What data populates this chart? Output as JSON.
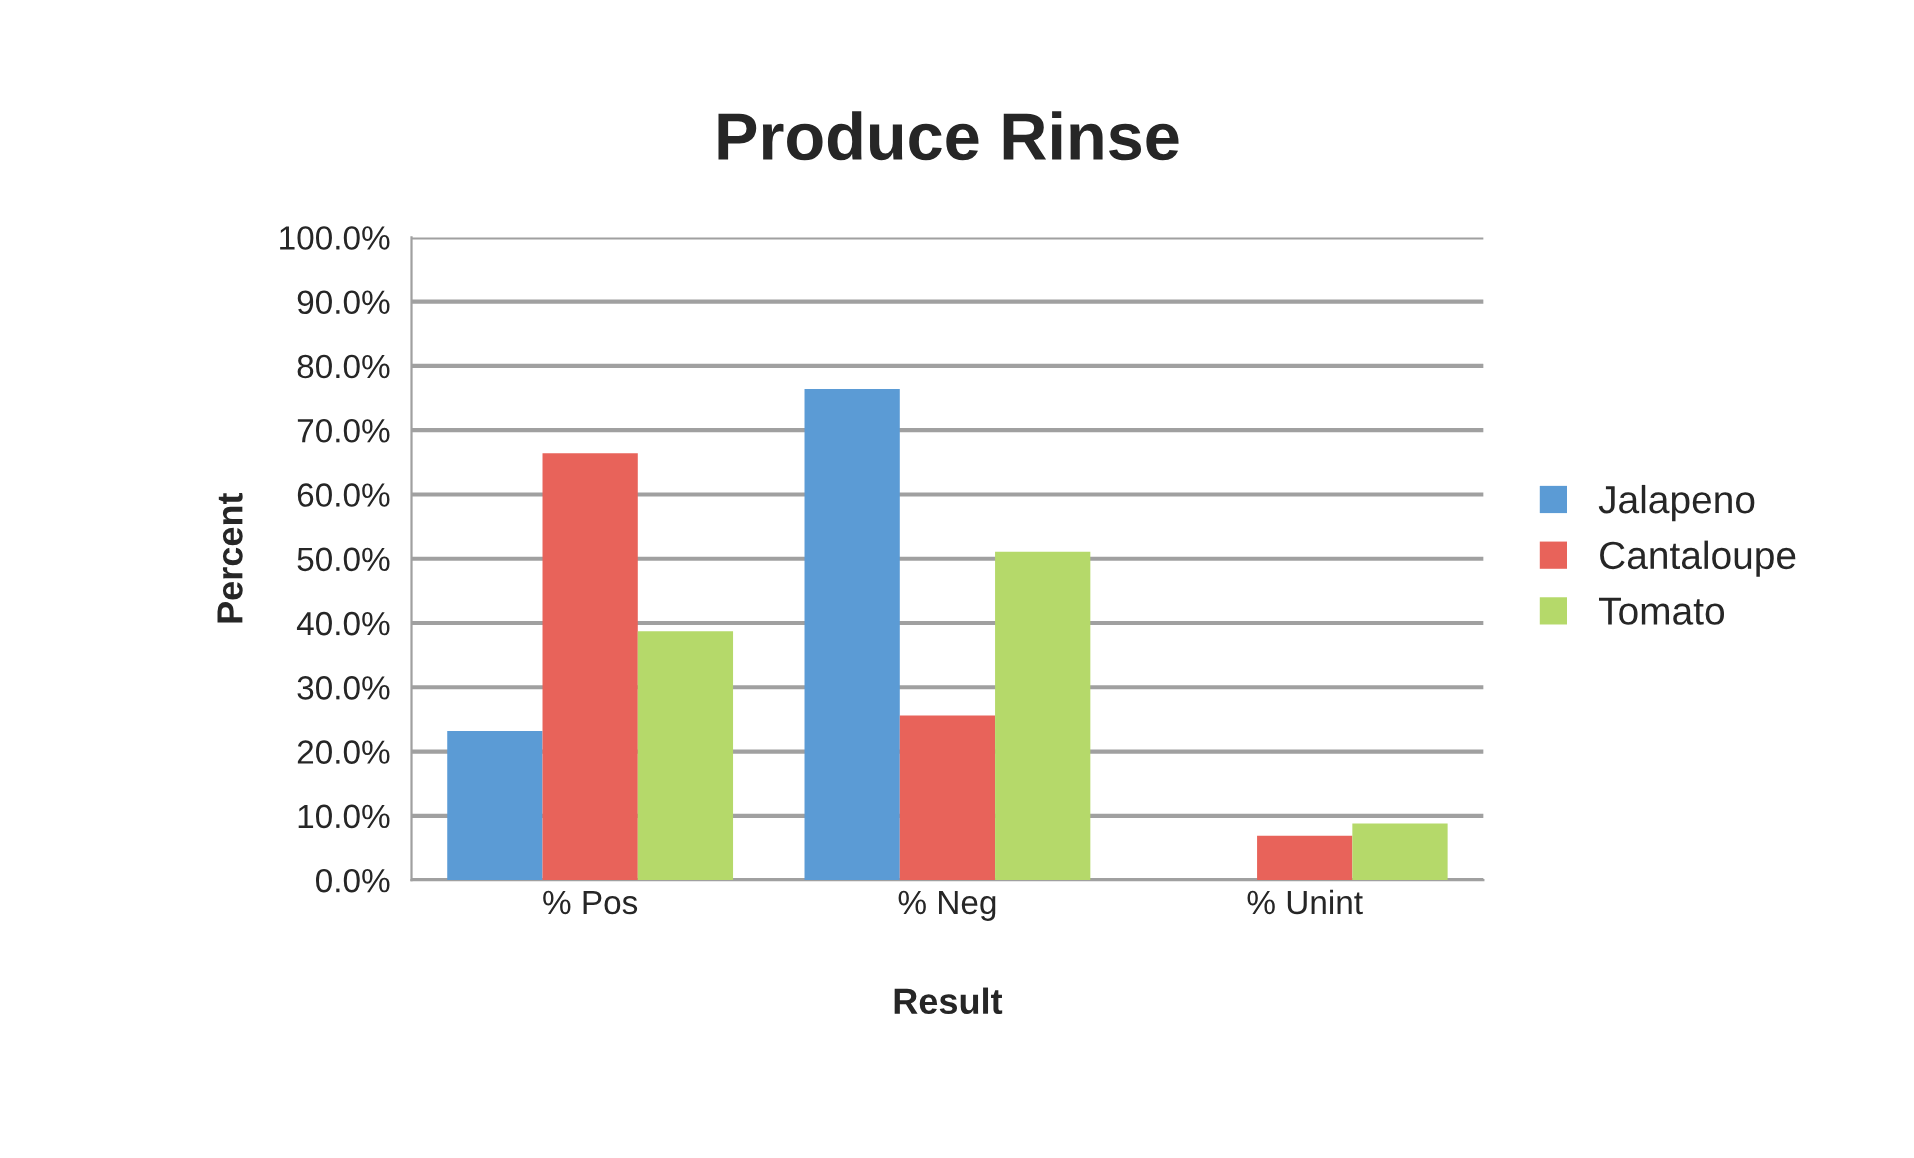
{
  "chart_data": {
    "type": "bar",
    "title": "Produce Rinse",
    "xlabel": "Result",
    "ylabel": "Percent",
    "categories": [
      "% Pos",
      "% Neg",
      "% Unint"
    ],
    "series": [
      {
        "name": "Jalapeno",
        "color": "#5b9bd5",
        "values": [
          23.2,
          76.4,
          null
        ]
      },
      {
        "name": "Cantaloupe",
        "color": "#e8635a",
        "values": [
          66.4,
          25.6,
          6.9
        ]
      },
      {
        "name": "Tomato",
        "color": "#b5d96a",
        "values": [
          38.7,
          51.1,
          8.8
        ]
      }
    ],
    "ylim": [
      0,
      100
    ],
    "yticks": [
      {
        "value": 0,
        "label": "0.0%"
      },
      {
        "value": 10,
        "label": "10.0%"
      },
      {
        "value": 20,
        "label": "20.0%"
      },
      {
        "value": 30,
        "label": "30.0%"
      },
      {
        "value": 40,
        "label": "40.0%"
      },
      {
        "value": 50,
        "label": "50.0%"
      },
      {
        "value": 60,
        "label": "60.0%"
      },
      {
        "value": 70,
        "label": "70.0%"
      },
      {
        "value": 80,
        "label": "80.0%"
      },
      {
        "value": 90,
        "label": "90.0%"
      },
      {
        "value": 100,
        "label": "100.0%"
      }
    ],
    "grid": "y",
    "legend": "right"
  }
}
